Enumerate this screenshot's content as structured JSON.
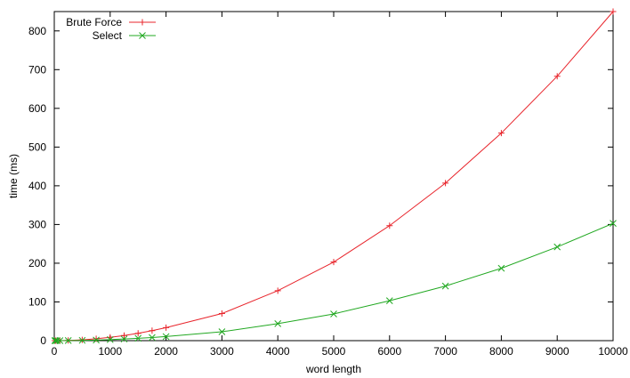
{
  "chart_data": {
    "type": "line",
    "xlabel": "word length",
    "ylabel": "time (ms)",
    "xlim": [
      0,
      10000
    ],
    "ylim": [
      0,
      850
    ],
    "xticks": [
      0,
      1000,
      2000,
      3000,
      4000,
      5000,
      6000,
      7000,
      8000,
      9000,
      10000
    ],
    "yticks": [
      0,
      100,
      200,
      300,
      400,
      500,
      600,
      700,
      800
    ],
    "grid": false,
    "legend_position": "top-left",
    "series": [
      {
        "name": "Brute Force",
        "color": "#e8242b",
        "marker": "plus",
        "points": [
          [
            10,
            0.0
          ],
          [
            25,
            0.0
          ],
          [
            50,
            0.0
          ],
          [
            100,
            0.1
          ],
          [
            250,
            0.5
          ],
          [
            500,
            2.1
          ],
          [
            750,
            4.8
          ],
          [
            1000,
            8.5
          ],
          [
            1250,
            13.2
          ],
          [
            1500,
            19.0
          ],
          [
            1750,
            25.9
          ],
          [
            2000,
            33.5
          ],
          [
            3000,
            70
          ],
          [
            4000,
            129
          ],
          [
            5000,
            203
          ],
          [
            6000,
            297
          ],
          [
            7000,
            407
          ],
          [
            8000,
            536
          ],
          [
            9000,
            683
          ],
          [
            10000,
            850
          ]
        ]
      },
      {
        "name": "Select",
        "color": "#21a821",
        "marker": "cross",
        "points": [
          [
            10,
            0.0
          ],
          [
            25,
            0.0
          ],
          [
            50,
            0.0
          ],
          [
            100,
            0.0
          ],
          [
            250,
            0.2
          ],
          [
            500,
            0.7
          ],
          [
            750,
            1.5
          ],
          [
            1000,
            2.7
          ],
          [
            1250,
            4.2
          ],
          [
            1500,
            6.0
          ],
          [
            1750,
            8.1
          ],
          [
            2000,
            10.5
          ],
          [
            3000,
            23
          ],
          [
            4000,
            44
          ],
          [
            5000,
            69
          ],
          [
            6000,
            103
          ],
          [
            7000,
            141
          ],
          [
            8000,
            187
          ],
          [
            9000,
            242
          ],
          [
            10000,
            303
          ]
        ]
      }
    ]
  }
}
